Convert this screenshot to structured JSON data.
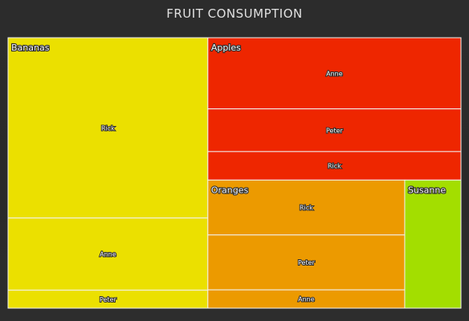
{
  "chart_data": {
    "type": "treemap",
    "title": "FRUIT CONSUMPTION",
    "groups": [
      {
        "name": "Bananas",
        "color": "#ebe000",
        "items": [
          {
            "name": "Rick",
            "value": 10
          },
          {
            "name": "Anne",
            "value": 4
          },
          {
            "name": "Peter",
            "value": 1
          }
        ]
      },
      {
        "name": "Apples",
        "color": "#ee2600",
        "items": [
          {
            "name": "Anne",
            "value": 5
          },
          {
            "name": "Peter",
            "value": 3
          },
          {
            "name": "Rick",
            "value": 2
          }
        ]
      },
      {
        "name": "Oranges",
        "color": "#ec9a00",
        "items": [
          {
            "name": "Rick",
            "value": 3
          },
          {
            "name": "Peter",
            "value": 3
          },
          {
            "name": "Anne",
            "value": 1
          }
        ]
      },
      {
        "name": "Susanne",
        "color": "#a3de00",
        "items": [
          {
            "name": "",
            "value": 2
          }
        ]
      }
    ]
  }
}
